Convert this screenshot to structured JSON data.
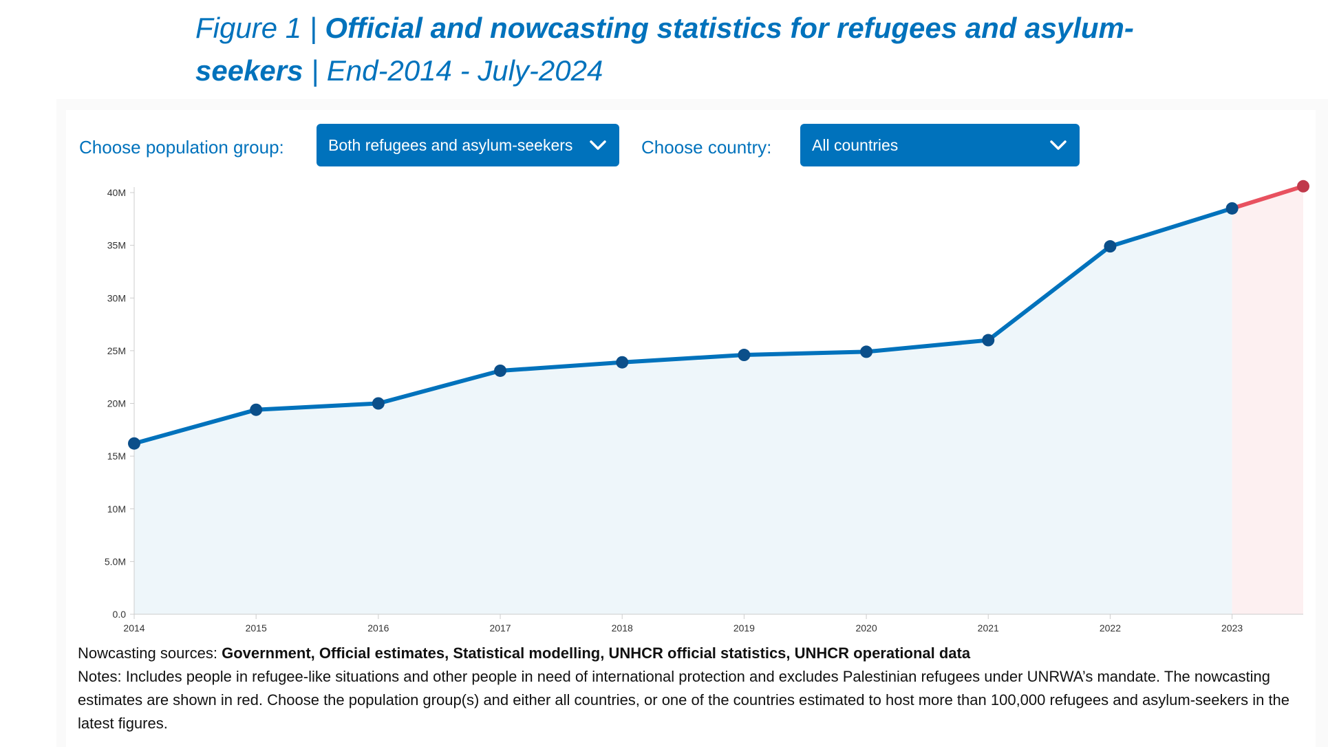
{
  "header": {
    "figure_label": "Figure 1 | ",
    "title_bold": "Official and nowcasting statistics for refugees and asylum-seekers",
    "title_suffix": " | End-2014 - July-2024"
  },
  "controls": {
    "population_label": "Choose population group:",
    "population_value": "Both refugees and asylum-seekers",
    "country_label": "Choose country:",
    "country_value": "All countries"
  },
  "chart_data": {
    "type": "area",
    "x_tick_labels": [
      "2014",
      "2015",
      "2016",
      "2017",
      "2018",
      "2019",
      "2020",
      "2021",
      "2022",
      "2023"
    ],
    "y_tick_labels": [
      "0.0",
      "5.0M",
      "10M",
      "15M",
      "20M",
      "25M",
      "30M",
      "35M",
      "40M"
    ],
    "ylim": [
      0,
      40000000
    ],
    "grid": false,
    "series": [
      {
        "role": "official",
        "color": "#0072bc",
        "marker_color": "#0b4f8a",
        "fill": "#eef6fa",
        "points": [
          {
            "x": "2014",
            "y": 16200000
          },
          {
            "x": "2015",
            "y": 19400000
          },
          {
            "x": "2016",
            "y": 20000000
          },
          {
            "x": "2017",
            "y": 23100000
          },
          {
            "x": "2018",
            "y": 23900000
          },
          {
            "x": "2019",
            "y": 24600000
          },
          {
            "x": "2020",
            "y": 24900000
          },
          {
            "x": "2021",
            "y": 26000000
          },
          {
            "x": "2022",
            "y": 34900000
          },
          {
            "x": "2023",
            "y": 38500000
          }
        ]
      },
      {
        "role": "nowcast",
        "color": "#e8515f",
        "marker_color": "#c0394b",
        "fill": "#fdf0f1",
        "points": [
          {
            "x": "2023",
            "y": 38500000
          },
          {
            "x": "2024-07",
            "y": 40600000
          }
        ]
      }
    ]
  },
  "footer": {
    "sources_label": "Nowcasting sources: ",
    "sources_value": "Government, Official estimates, Statistical modelling, UNHCR official statistics, UNHCR operational data",
    "notes": "Notes: Includes people in refugee-like situations and other people in need of international protection and excludes Palestinian refugees under UNRWA’s mandate. The nowcasting estimates are shown in red. Choose the population group(s) and either all countries, or one of the countries estimated to host more than 100,000 refugees and asylum-seekers in the latest figures."
  }
}
